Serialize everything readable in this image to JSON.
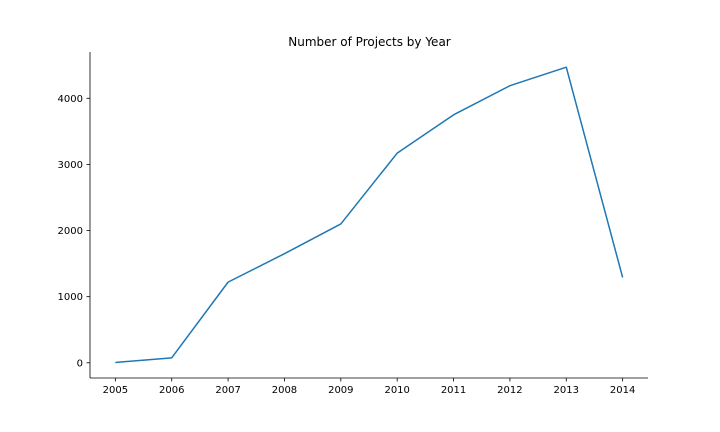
{
  "chart_data": {
    "type": "line",
    "title": "Number of Projects by Year",
    "xlabel": "",
    "ylabel": "",
    "x": [
      2005,
      2006,
      2007,
      2008,
      2009,
      2010,
      2011,
      2012,
      2013,
      2014
    ],
    "x_tick_labels": [
      "2005",
      "2006",
      "2007",
      "2008",
      "2009",
      "2010",
      "2011",
      "2012",
      "2013",
      "2014"
    ],
    "y_ticks": [
      0,
      1000,
      2000,
      3000,
      4000
    ],
    "y_tick_labels": [
      "0",
      "1000",
      "2000",
      "3000",
      "4000"
    ],
    "xlim": [
      2004.55,
      2014.45
    ],
    "ylim": [
      -230,
      4700
    ],
    "grid": false,
    "legend": "none",
    "series": [
      {
        "color": "#1f77b4",
        "values": [
          5,
          75,
          1220,
          1650,
          2100,
          3170,
          3750,
          4190,
          4470,
          1290
        ]
      }
    ]
  }
}
